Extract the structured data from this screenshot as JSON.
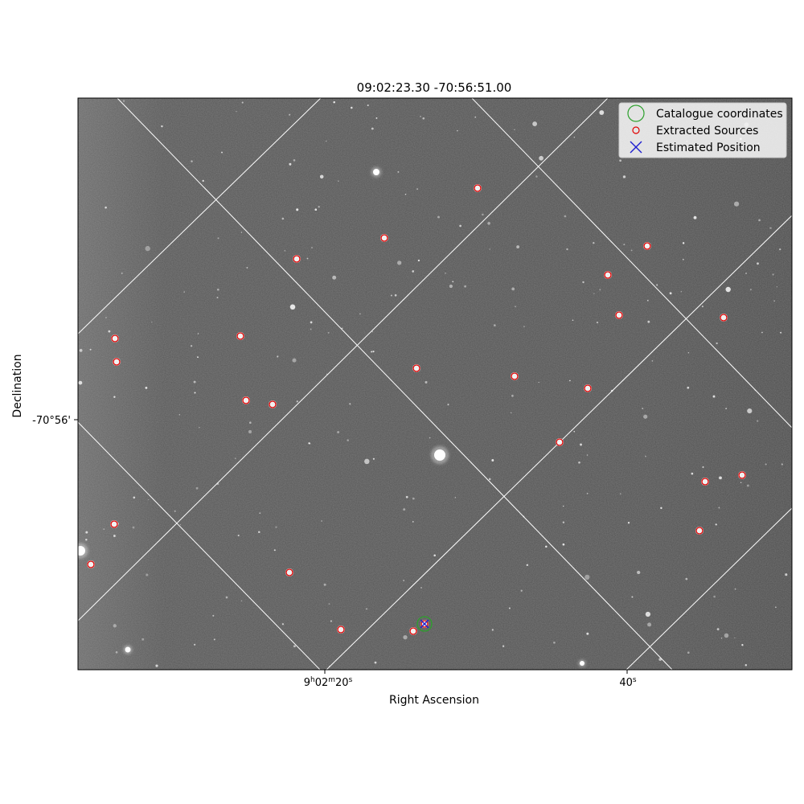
{
  "chart_data": {
    "type": "scatter",
    "title": "09:02:23.30 -70:56:51.00",
    "xlabel": "Right Ascension",
    "ylabel": "Declination",
    "x_ticks": [
      {
        "main": "9",
        "sup1": "h",
        "mid": "02",
        "sup2": "m",
        "end": "20",
        "sup3": "s"
      },
      {
        "main": "40",
        "sup3": "s"
      }
    ],
    "y_ticks": [
      "-70°56'"
    ],
    "grid": true,
    "legend_position": "top-right",
    "legend": [
      {
        "label": "Catalogue coordinates",
        "marker": "circle-large",
        "color": "#2ca02c"
      },
      {
        "label": "Extracted Sources",
        "marker": "circle-small",
        "color": "#e00000"
      },
      {
        "label": "Estimated Position",
        "marker": "x",
        "color": "#1f1fd0"
      }
    ],
    "catalogue_coordinates": [
      {
        "x": 528,
        "y": 776
      }
    ],
    "estimated_position": [
      {
        "x": 528,
        "y": 776
      }
    ],
    "extracted_sources": [
      {
        "x": 594,
        "y": 234
      },
      {
        "x": 478,
        "y": 296
      },
      {
        "x": 369,
        "y": 322
      },
      {
        "x": 805,
        "y": 306
      },
      {
        "x": 756,
        "y": 342
      },
      {
        "x": 770,
        "y": 392
      },
      {
        "x": 900,
        "y": 395
      },
      {
        "x": 143,
        "y": 421
      },
      {
        "x": 145,
        "y": 450
      },
      {
        "x": 299,
        "y": 418
      },
      {
        "x": 518,
        "y": 458
      },
      {
        "x": 640,
        "y": 468
      },
      {
        "x": 731,
        "y": 483
      },
      {
        "x": 306,
        "y": 498
      },
      {
        "x": 339,
        "y": 503
      },
      {
        "x": 696,
        "y": 550
      },
      {
        "x": 923,
        "y": 591
      },
      {
        "x": 877,
        "y": 599
      },
      {
        "x": 870,
        "y": 660
      },
      {
        "x": 142,
        "y": 652
      },
      {
        "x": 113,
        "y": 702
      },
      {
        "x": 360,
        "y": 712
      },
      {
        "x": 424,
        "y": 783
      },
      {
        "x": 514,
        "y": 785
      },
      {
        "x": 528,
        "y": 776
      }
    ],
    "colors": {
      "catalogue": "#2ca02c",
      "extracted": "#e00000",
      "estimated": "#1f1fd0",
      "background": "#545454",
      "grid": "#ffffff"
    }
  }
}
